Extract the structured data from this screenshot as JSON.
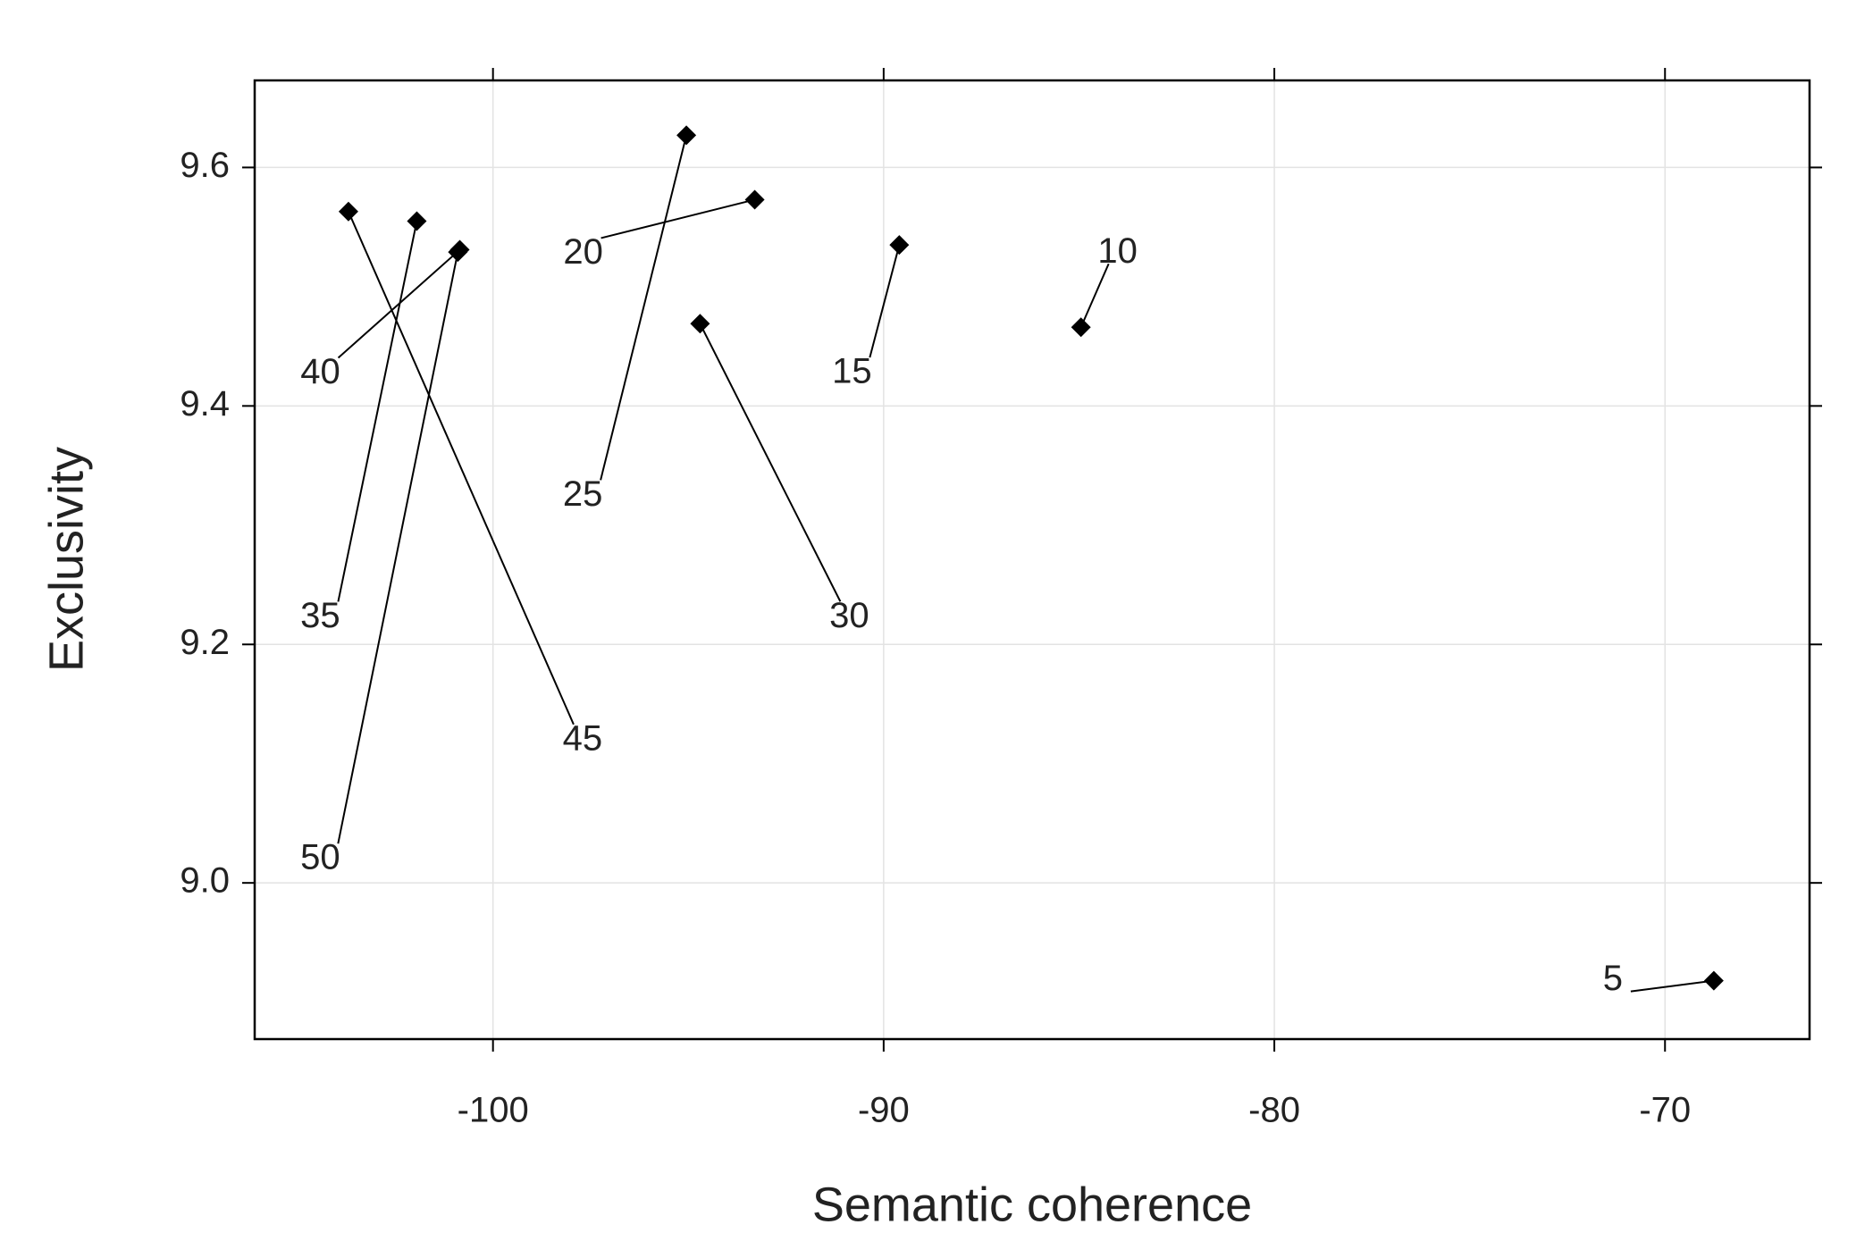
{
  "chart_data": {
    "type": "scatter",
    "xlabel": "Semantic coherence",
    "ylabel": "Exclusivity",
    "labels": [
      "5",
      "10",
      "15",
      "20",
      "25",
      "30",
      "35",
      "40",
      "45",
      "50"
    ],
    "x": [
      -68.75,
      -84.95,
      -89.6,
      -93.3,
      -95.05,
      -94.7,
      -101.95,
      -100.85,
      -103.7,
      -100.9
    ],
    "values": [
      8.918,
      9.466,
      9.535,
      9.573,
      9.627,
      9.469,
      9.555,
      9.531,
      9.563,
      9.529
    ],
    "color": "#000000",
    "xlim": [
      -106.1,
      -66.3
    ],
    "ylim": [
      8.869,
      9.673
    ],
    "xticks": [
      -100,
      -90,
      -80,
      -70
    ],
    "yticks": [
      {
        "value": 9,
        "label": "9.0"
      },
      9.2,
      9.4,
      9.6
    ],
    "grid": true
  }
}
